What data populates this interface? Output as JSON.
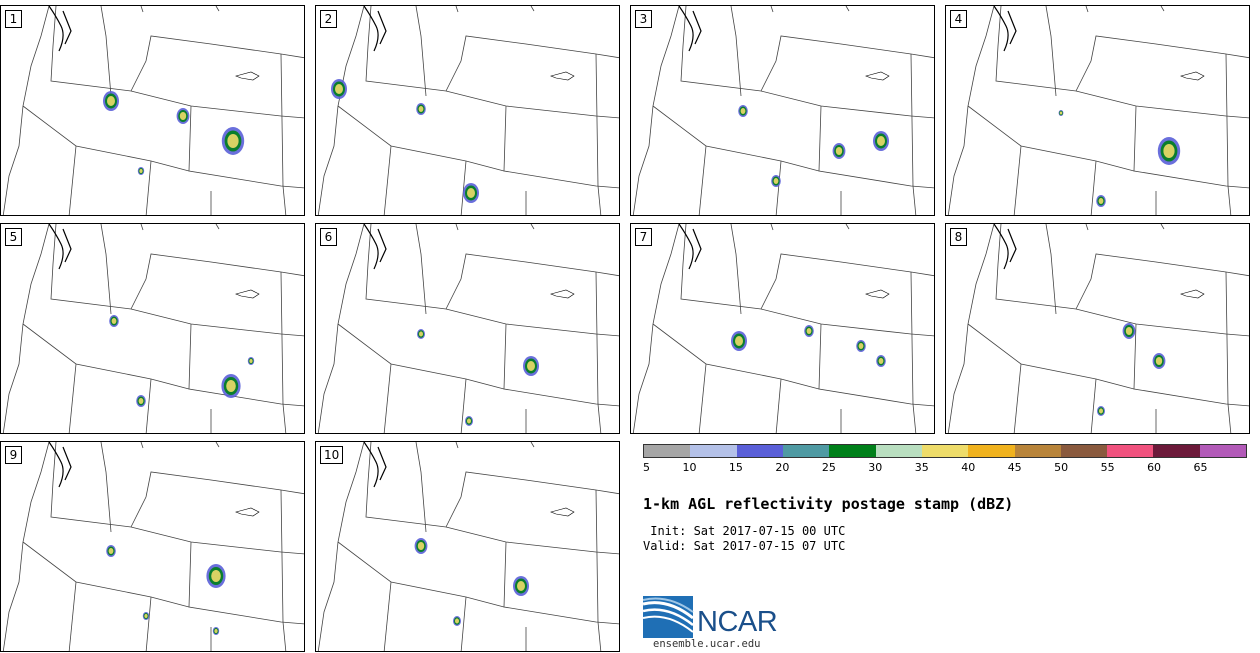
{
  "panels": [
    {
      "label": "1"
    },
    {
      "label": "2"
    },
    {
      "label": "3"
    },
    {
      "label": "4"
    },
    {
      "label": "5"
    },
    {
      "label": "6"
    },
    {
      "label": "7"
    },
    {
      "label": "8"
    },
    {
      "label": "9"
    },
    {
      "label": "10"
    }
  ],
  "colorbar": {
    "colors": [
      "#a6a6a6",
      "#b4c1e8",
      "#5a5fd8",
      "#4f9aa3",
      "#00801a",
      "#b9dfc0",
      "#eedc6a",
      "#f0b21e",
      "#b8843a",
      "#8a5a3e",
      "#f0527e",
      "#6c1a3a",
      "#b25ab8"
    ],
    "tick_labels": [
      "5",
      "10",
      "15",
      "20",
      "25",
      "30",
      "35",
      "40",
      "45",
      "50",
      "55",
      "60",
      "65"
    ]
  },
  "title": "1-km AGL reflectivity postage stamp (dBZ)",
  "init": " Init: Sat 2017-07-15 00 UTC",
  "valid": "Valid: Sat 2017-07-15 07 UTC",
  "logo": {
    "text": "NCAR",
    "url": "ensemble.ucar.edu"
  }
}
